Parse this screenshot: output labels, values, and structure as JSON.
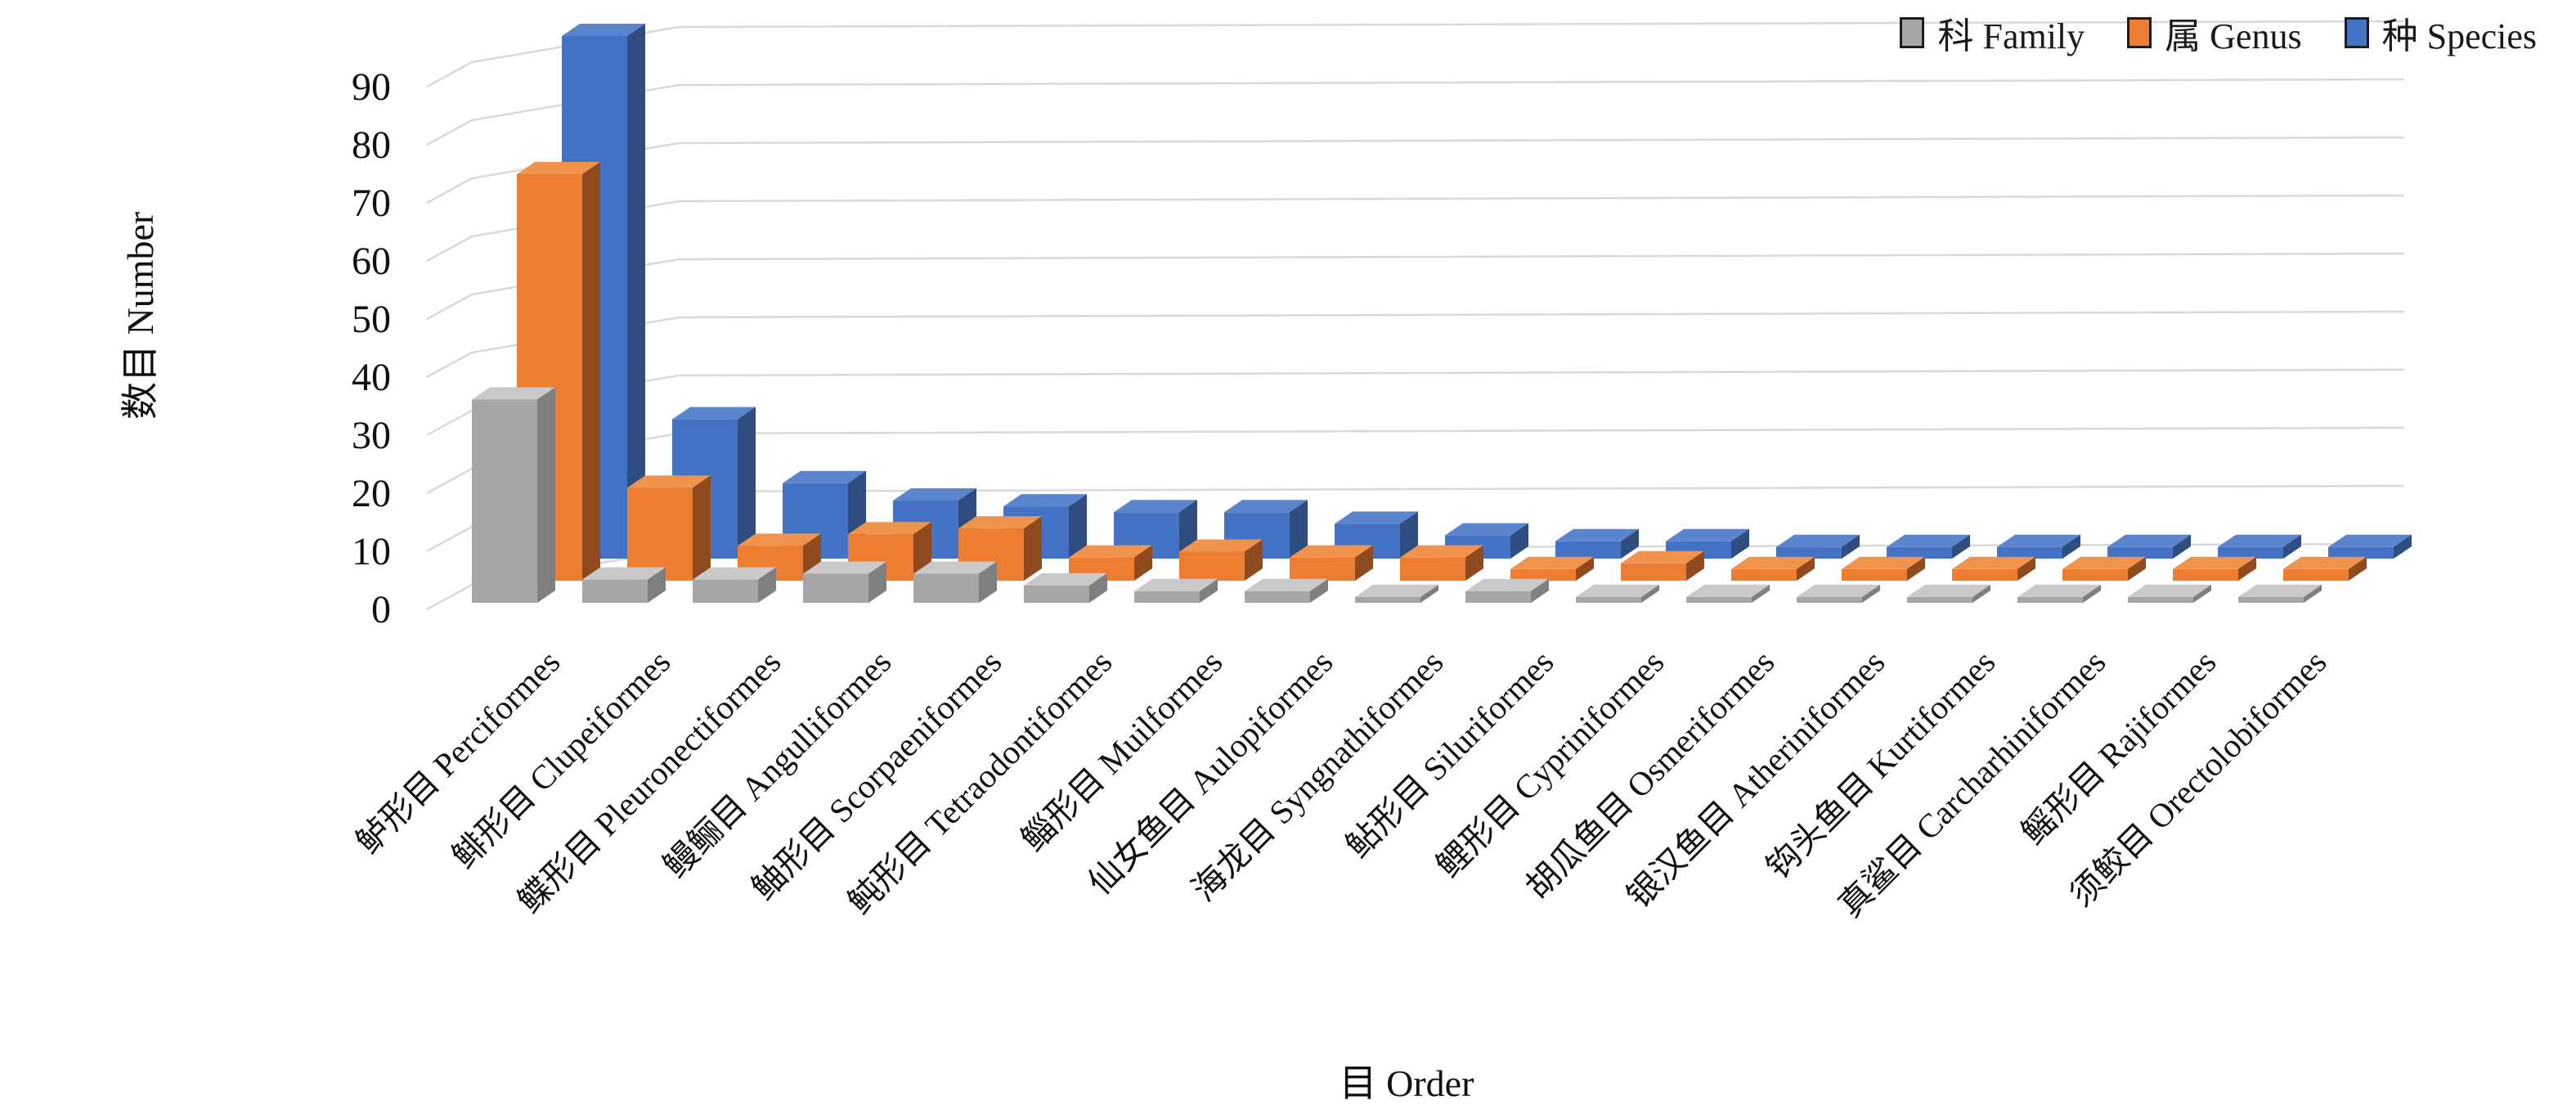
{
  "chart_data": {
    "type": "bar",
    "variant": "3d-column",
    "title": "",
    "xlabel": "目 Order",
    "ylabel": "数目 Number",
    "ylim": [
      0,
      90
    ],
    "yticks": [
      0,
      10,
      20,
      30,
      40,
      50,
      60,
      70,
      80,
      90
    ],
    "grid": true,
    "legend_position": "top-right",
    "background": "#ffffff",
    "gridline_color": "#d9d9d9",
    "categories": [
      "鲈形目 Perciformes",
      "鲱形目 Clupeiformes",
      "鲽形目 Pleuronectiformes",
      "鳗鲡目 Angulliformes",
      "鲉形目 Scorpaeniformes",
      "鲀形目 Tetraodontiformes",
      "鲻形目 Muilformes",
      "仙女鱼目 Aulopiformes",
      "海龙目 Syngnathiformes",
      "鲇形目 Siluriformes",
      "鲤形目 Cypriniformes",
      "胡瓜鱼目 Osmeriformes",
      "银汉鱼目 Atheriniformes",
      "钩头鱼目 Kurtiformes",
      "真鲨目 Carcharhiniformes",
      "鳐形目 Rajiformes",
      "须鲛目 Orectolobiformes"
    ],
    "series": [
      {
        "name": "科 Family",
        "color": "#a6a6a6",
        "color_top": "#c9c9c9",
        "color_side": "#7f7f7f",
        "values": [
          35,
          4,
          4,
          5,
          5,
          3,
          2,
          2,
          1,
          2,
          1,
          1,
          1,
          1,
          1,
          1,
          1
        ]
      },
      {
        "name": "属 Genus",
        "color": "#ed7d31",
        "color_top": "#f0944d",
        "color_side": "#8f4a20",
        "values": [
          70,
          16,
          6,
          8,
          9,
          4,
          5,
          4,
          4,
          2,
          3,
          2,
          2,
          2,
          2,
          2,
          2
        ]
      },
      {
        "name": "种 Species",
        "color": "#4472c4",
        "color_top": "#5b84ce",
        "color_side": "#2f4d7e",
        "values": [
          90,
          24,
          13,
          10,
          9,
          8,
          8,
          6,
          4,
          3,
          3,
          2,
          2,
          2,
          2,
          2,
          2
        ]
      }
    ]
  }
}
